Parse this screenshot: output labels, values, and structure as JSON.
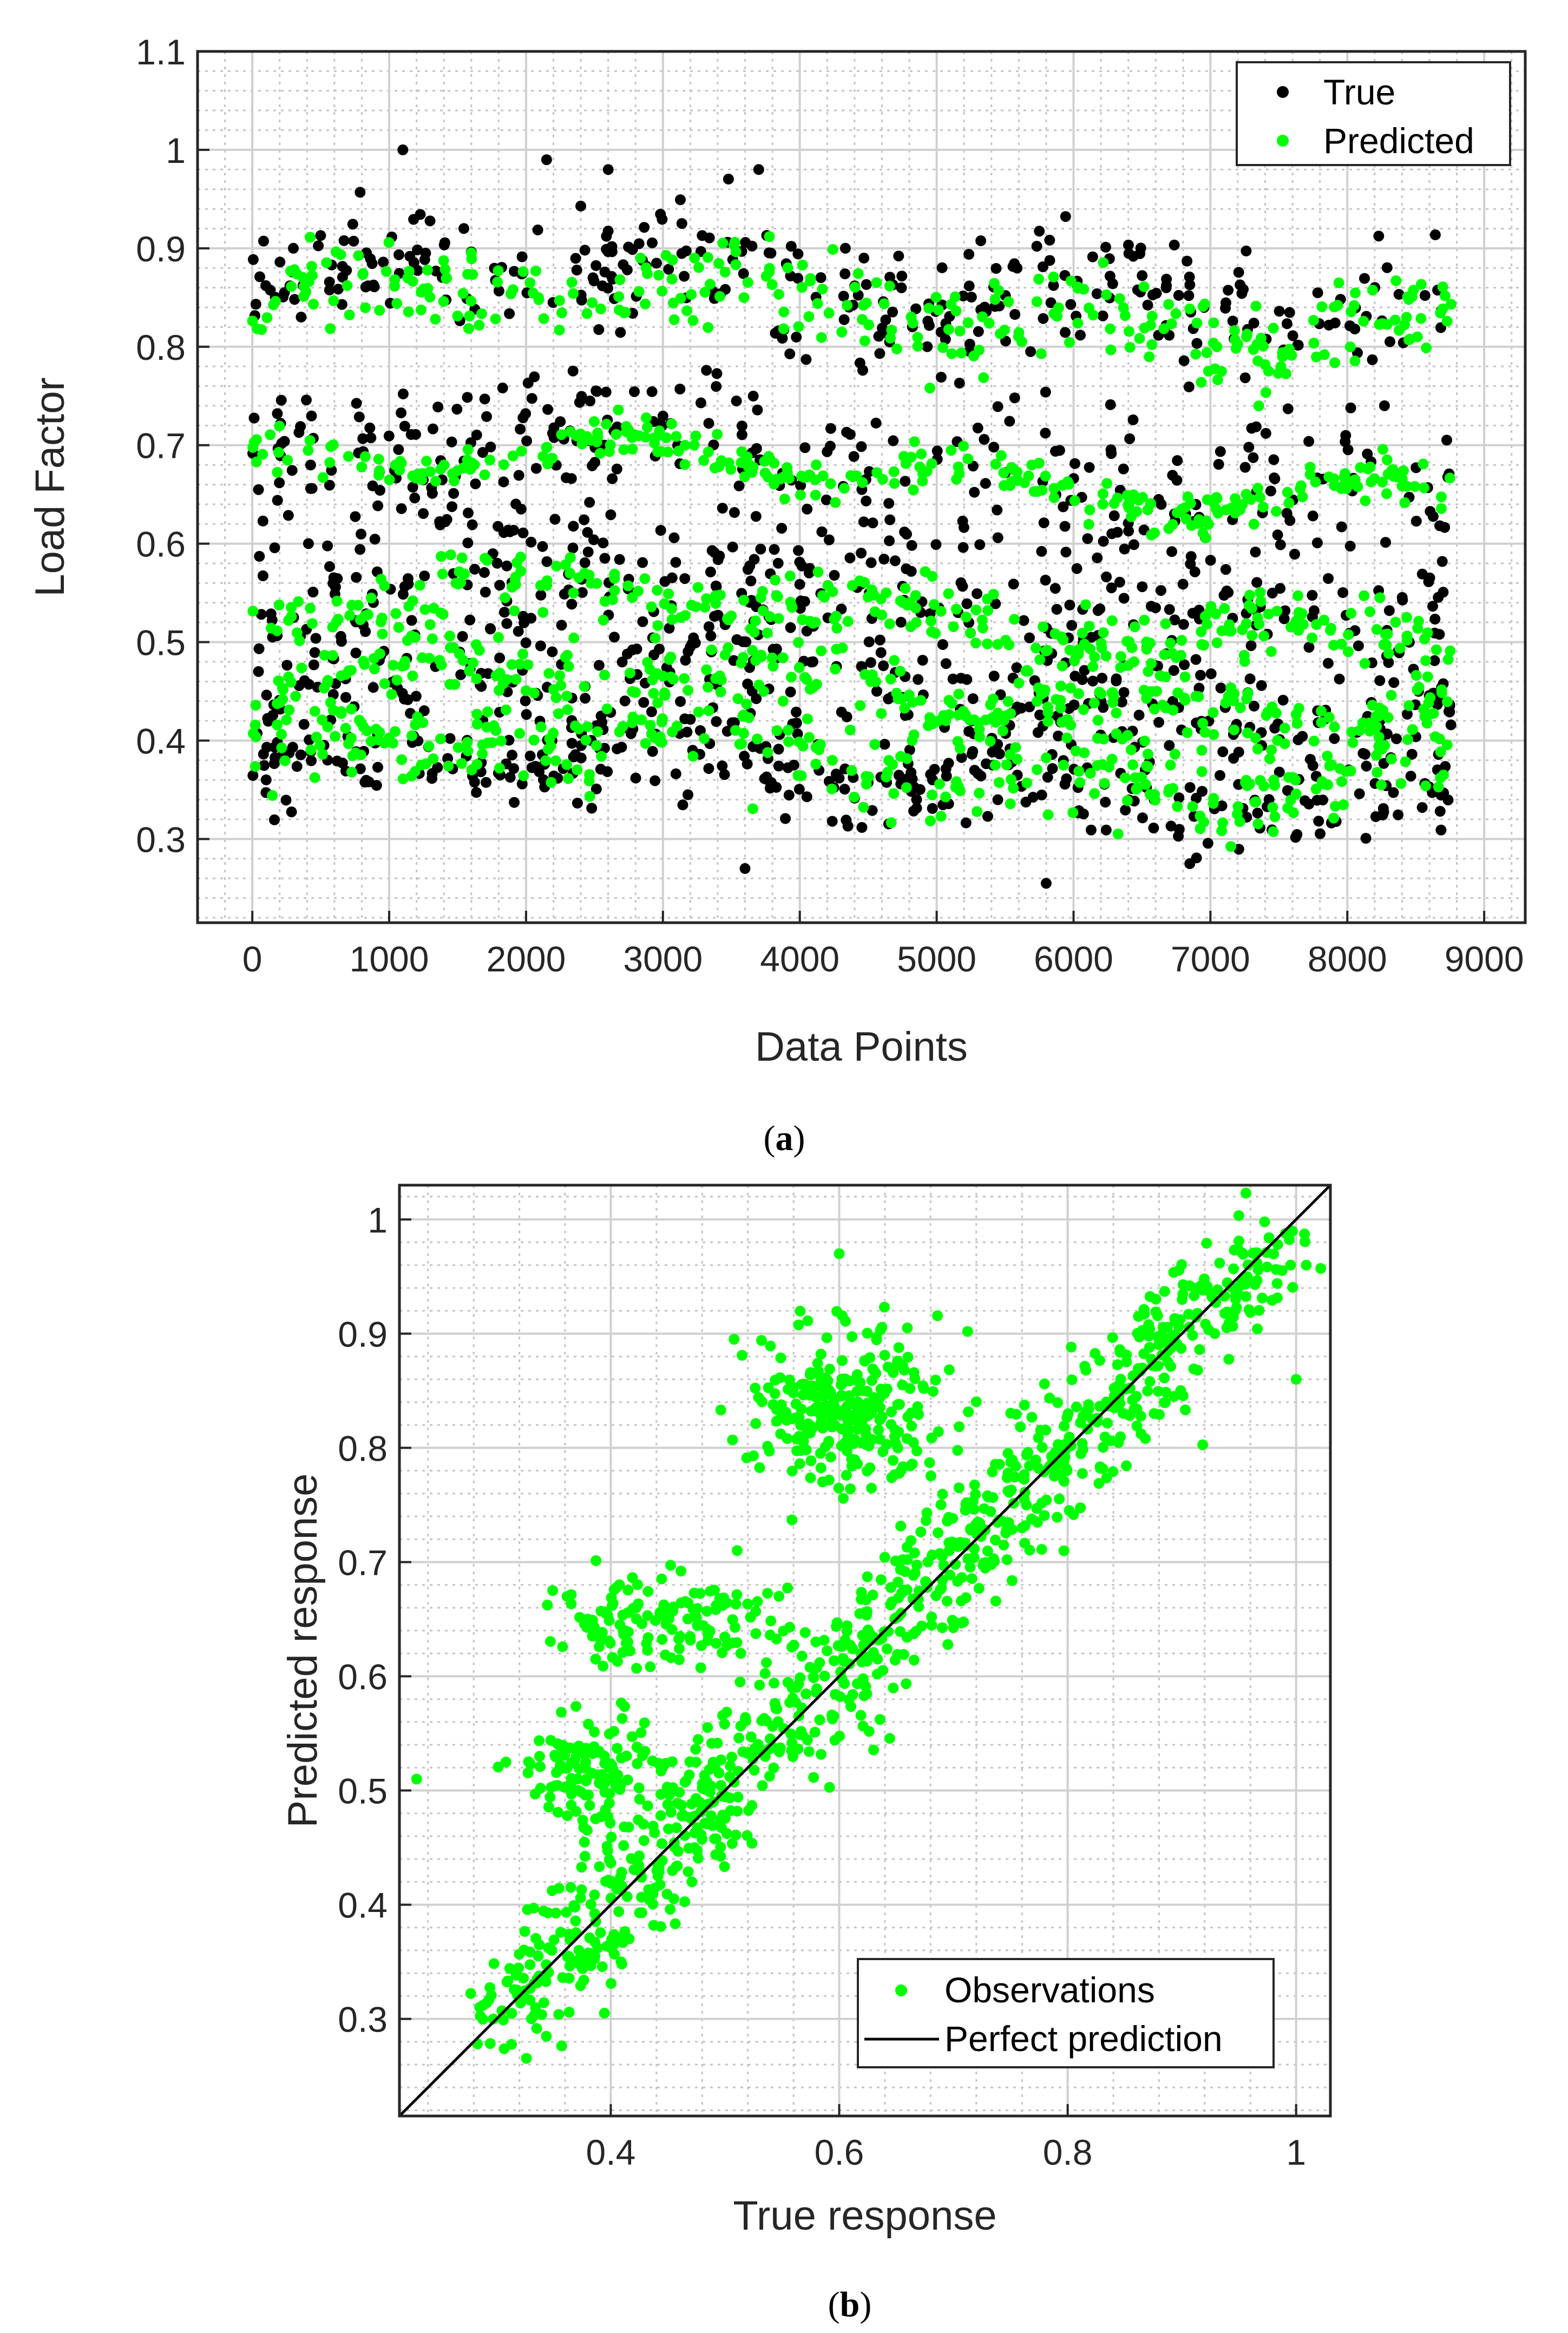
{
  "chart_data": [
    {
      "type": "scatter",
      "panel": "(a)",
      "caption_letter": "a",
      "xlabel": "Data Points",
      "ylabel": "Load Factor",
      "xlim": [
        -400,
        9300
      ],
      "ylim": [
        0.215,
        1.1
      ],
      "xticks": [
        0,
        1000,
        2000,
        3000,
        4000,
        5000,
        6000,
        7000,
        8000,
        9000
      ],
      "xtick_labels": [
        "0",
        "1000",
        "2000",
        "3000",
        "4000",
        "5000",
        "6000",
        "7000",
        "8000",
        "9000"
      ],
      "yticks": [
        0.3,
        0.4,
        0.5,
        0.6,
        0.7,
        0.8,
        0.9,
        1.0,
        1.1
      ],
      "ytick_labels": [
        "0.3",
        "0.4",
        "0.5",
        "0.6",
        "0.7",
        "0.8",
        "0.9",
        "1",
        "1.1"
      ],
      "grid": "major and minor",
      "legend_position": "top-right",
      "series": [
        {
          "name": "True",
          "color": "#000000",
          "marker": "dot",
          "points_count": 8760,
          "bands": [
            {
              "level": 0.86,
              "spread": 0.05,
              "x_range": [
                0,
                8760
              ]
            },
            {
              "level": 0.68,
              "spread": 0.08,
              "x_range": [
                0,
                8760
              ]
            },
            {
              "level": 0.55,
              "spread": 0.07,
              "x_range": [
                0,
                8760
              ]
            },
            {
              "level": 0.45,
              "spread": 0.05,
              "x_range": [
                0,
                8760
              ]
            },
            {
              "level": 0.36,
              "spread": 0.04,
              "x_range": [
                0,
                8760
              ]
            }
          ],
          "notable_points": [
            {
              "x": 1100,
              "y": 1.0
            },
            {
              "x": 2150,
              "y": 0.99
            },
            {
              "x": 2600,
              "y": 0.98
            },
            {
              "x": 3700,
              "y": 0.98
            },
            {
              "x": 3600,
              "y": 0.27
            },
            {
              "x": 5800,
              "y": 0.255
            },
            {
              "x": 300,
              "y": 0.9
            }
          ]
        },
        {
          "name": "Predicted",
          "color": "#00ff00",
          "marker": "dot",
          "points_count": 8760,
          "bands": [
            {
              "level": 0.84,
              "spread": 0.04,
              "x_range": [
                0,
                8760
              ]
            },
            {
              "level": 0.67,
              "spread": 0.02,
              "x_range": [
                0,
                8760
              ]
            },
            {
              "level": 0.53,
              "spread": 0.03,
              "x_range": [
                0,
                8760
              ]
            },
            {
              "level": 0.45,
              "spread": 0.03,
              "x_range": [
                0,
                8760
              ]
            },
            {
              "level": 0.38,
              "spread": 0.04,
              "x_range": [
                0,
                8760
              ]
            }
          ]
        }
      ]
    },
    {
      "type": "scatter",
      "panel": "(b)",
      "caption_letter": "b",
      "xlabel": "True response",
      "ylabel": "Predicted response",
      "xlim": [
        0.215,
        1.03
      ],
      "ylim": [
        0.215,
        1.03
      ],
      "xticks": [
        0.4,
        0.6,
        0.8,
        1.0
      ],
      "xtick_labels": [
        "0.4",
        "0.6",
        "0.8",
        "1"
      ],
      "yticks": [
        0.3,
        0.4,
        0.5,
        0.6,
        0.7,
        0.8,
        0.9,
        1.0
      ],
      "ytick_labels": [
        "0.3",
        "0.4",
        "0.5",
        "0.6",
        "0.7",
        "0.8",
        "0.9",
        "1"
      ],
      "grid": "major and minor",
      "legend_position": "bottom-right",
      "series": [
        {
          "name": "Observations",
          "color": "#00ff00",
          "marker": "dot",
          "clusters": [
            {
              "x_center": 0.62,
              "y_center": 0.62,
              "spread": 0.05,
              "along_diagonal_range": [
                0.3,
                0.98
              ]
            },
            {
              "x_center": 0.61,
              "y_center": 0.83,
              "spread": 0.04
            },
            {
              "x_center": 0.45,
              "y_center": 0.65,
              "spread": 0.04
            },
            {
              "x_center": 0.38,
              "y_center": 0.52,
              "spread": 0.03
            }
          ],
          "notable_points": [
            {
              "x": 0.6,
              "y": 0.97
            },
            {
              "x": 0.23,
              "y": 0.51
            },
            {
              "x": 1.0,
              "y": 0.86
            }
          ]
        },
        {
          "name": "Perfect prediction",
          "color": "#000000",
          "line": "solid",
          "x": [
            0.215,
            1.03
          ],
          "y": [
            0.215,
            1.03
          ]
        }
      ]
    }
  ]
}
